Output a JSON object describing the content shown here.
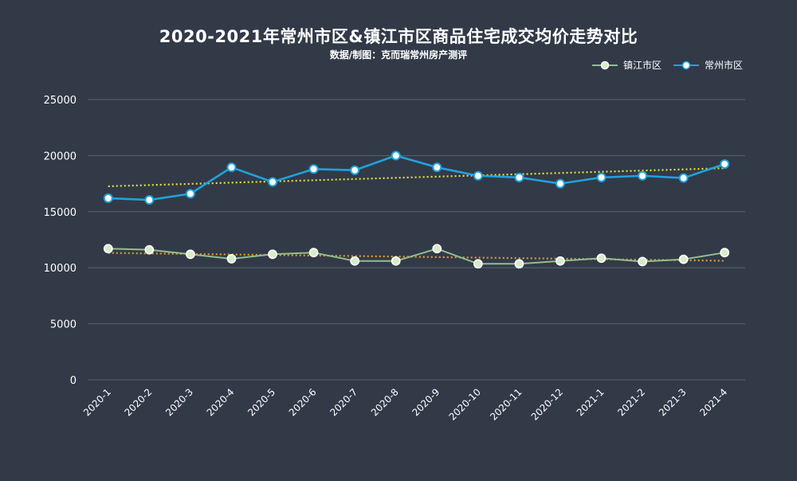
{
  "chart_data": {
    "type": "line",
    "title": "2020-2021年常州市区&镇江市区商品住宅成交均价走势对比",
    "subtitle": "数据/制图：克而瑞常州房产测评",
    "categories": [
      "2020-1",
      "2020-2",
      "2020-3",
      "2020-4",
      "2020-5",
      "2020-6",
      "2020-7",
      "2020-8",
      "2020-9",
      "2020-10",
      "2020-11",
      "2020-12",
      "2021-1",
      "2021-2",
      "2021-3",
      "2021-4"
    ],
    "series": [
      {
        "name": "镇江市区",
        "color": "#8fbf8f",
        "marker_fill": "#d7ecc6",
        "trend_color": "#e09a2c",
        "values": [
          11700,
          11600,
          11200,
          10800,
          11200,
          11350,
          10600,
          10600,
          11700,
          10350,
          10350,
          10600,
          10850,
          10550,
          10750,
          11350
        ]
      },
      {
        "name": "常州市区",
        "color": "#1fa3dc",
        "marker_fill": "#ffffff",
        "trend_color": "#e3e040",
        "values": [
          16200,
          16050,
          16600,
          18950,
          17650,
          18800,
          18700,
          20000,
          18950,
          18200,
          18050,
          17500,
          18050,
          18200,
          18000,
          19250
        ]
      }
    ],
    "ylim": [
      0,
      25000
    ],
    "yticks": [
      "0",
      "5000",
      "10000",
      "15000",
      "20000",
      "25000"
    ],
    "grid": true,
    "legend_position": "top-right",
    "trendline": "linear-dotted"
  }
}
